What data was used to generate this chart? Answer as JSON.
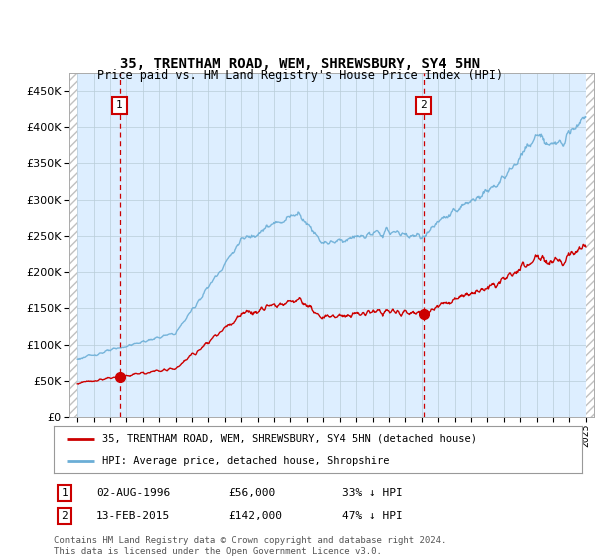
{
  "title": "35, TRENTHAM ROAD, WEM, SHREWSBURY, SY4 5HN",
  "subtitle": "Price paid vs. HM Land Registry's House Price Index (HPI)",
  "legend_line1": "35, TRENTHAM ROAD, WEM, SHREWSBURY, SY4 5HN (detached house)",
  "legend_line2": "HPI: Average price, detached house, Shropshire",
  "footnote": "Contains HM Land Registry data © Crown copyright and database right 2024.\nThis data is licensed under the Open Government Licence v3.0.",
  "sale1_label": "1",
  "sale1_date": "02-AUG-1996",
  "sale1_price": "£56,000",
  "sale1_hpi": "33% ↓ HPI",
  "sale1_year": 1996.58,
  "sale1_value": 56000,
  "sale2_label": "2",
  "sale2_date": "13-FEB-2015",
  "sale2_price": "£142,000",
  "sale2_hpi": "47% ↓ HPI",
  "sale2_year": 2015.12,
  "sale2_value": 142000,
  "hpi_color": "#6baed6",
  "price_color": "#cc0000",
  "marker_color": "#cc0000",
  "vline_color": "#cc0000",
  "plot_bg": "#ddeeff",
  "ylim": [
    0,
    475000
  ],
  "yticks": [
    0,
    50000,
    100000,
    150000,
    200000,
    250000,
    300000,
    350000,
    400000,
    450000
  ],
  "xlim_start": 1993.5,
  "xlim_end": 2025.5,
  "xtick_years": [
    1994,
    1995,
    1996,
    1997,
    1998,
    1999,
    2000,
    2001,
    2002,
    2003,
    2004,
    2005,
    2006,
    2007,
    2008,
    2009,
    2010,
    2011,
    2012,
    2013,
    2014,
    2015,
    2016,
    2017,
    2018,
    2019,
    2020,
    2021,
    2022,
    2023,
    2024,
    2025
  ]
}
